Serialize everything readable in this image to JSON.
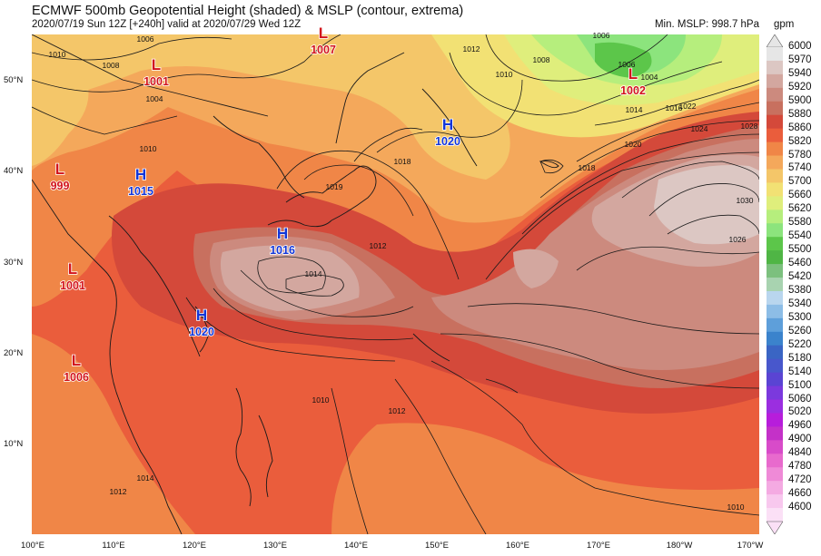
{
  "header": {
    "title": "ECMWF 500mb Geopotential Height (shaded) & MSLP (contour, extrema)",
    "subtitle": "2020/07/19 Sun 12Z [+240h] valid at 2020/07/29 Wed 12Z",
    "min_mslp": "Min. MSLP: 998.7 hPa",
    "units": "gpm"
  },
  "axes": {
    "lat_labels": [
      "50°N",
      "40°N",
      "30°N",
      "20°N",
      "10°N"
    ],
    "lon_labels": [
      "100°E",
      "110°E",
      "120°E",
      "130°E",
      "140°E",
      "150°E",
      "160°E",
      "170°E",
      "180°W",
      "170°W"
    ]
  },
  "colorbar": {
    "levels": [
      "6000",
      "5970",
      "5940",
      "5920",
      "5900",
      "5880",
      "5860",
      "5820",
      "5780",
      "5740",
      "5700",
      "5660",
      "5620",
      "5580",
      "5540",
      "5500",
      "5460",
      "5420",
      "5380",
      "5340",
      "5300",
      "5260",
      "5220",
      "5180",
      "5140",
      "5100",
      "5060",
      "5020",
      "4960",
      "4900",
      "4840",
      "4780",
      "4720",
      "4660",
      "4600"
    ],
    "colors": [
      "#e6e6e6",
      "#dcc7c3",
      "#d3a79f",
      "#cc8a7e",
      "#c8705f",
      "#d4493a",
      "#ea5d3c",
      "#f08647",
      "#f4a85b",
      "#f4c669",
      "#f2e174",
      "#dfee7c",
      "#b6ee7d",
      "#8ce47d",
      "#5cc64a",
      "#4fb545",
      "#7cc07e",
      "#a8d3b0",
      "#b9d6ee",
      "#8dbde6",
      "#5e9fda",
      "#3b83cc",
      "#3a65c4",
      "#4857cc",
      "#5a44d3",
      "#7b39dd",
      "#9b2ee0",
      "#b71ddb",
      "#c431c8",
      "#d84bc9",
      "#e86acd",
      "#ef8ad7",
      "#f4aae2",
      "#f8c8ee",
      "#fbe0f6"
    ]
  },
  "mslp_extrema": [
    {
      "type": "H",
      "value": "1020"
    },
    {
      "type": "H",
      "value": "1015"
    },
    {
      "type": "H",
      "value": "1016"
    },
    {
      "type": "H",
      "value": "1020"
    },
    {
      "type": "L",
      "value": "1007"
    },
    {
      "type": "L",
      "value": "1001"
    },
    {
      "type": "L",
      "value": "999"
    },
    {
      "type": "L",
      "value": "1001"
    },
    {
      "type": "L",
      "value": "1006"
    },
    {
      "type": "L",
      "value": "1002"
    }
  ],
  "isobar_labels": [
    "1006",
    "1008",
    "1010",
    "1004",
    "1010",
    "1012",
    "1010",
    "1008",
    "1006",
    "1006",
    "1004",
    "1014",
    "1016",
    "1022",
    "1024",
    "1028",
    "1020",
    "1018",
    "1018",
    "1019",
    "1012",
    "1014",
    "1030",
    "1026",
    "1010",
    "1012",
    "1010",
    "1012",
    "1014"
  ]
}
